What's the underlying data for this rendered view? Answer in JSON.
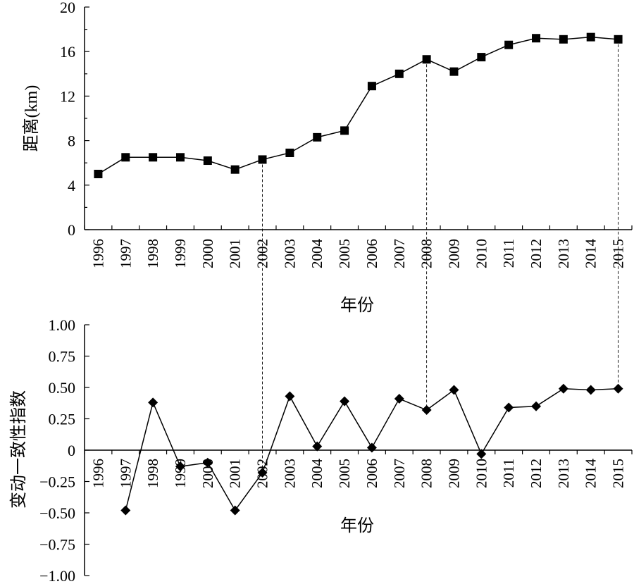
{
  "chart_data": [
    {
      "type": "line",
      "marker": "square",
      "x": [
        "1996",
        "1997",
        "1998",
        "1999",
        "2000",
        "2001",
        "2002",
        "2003",
        "2004",
        "2005",
        "2006",
        "2007",
        "2008",
        "2009",
        "2010",
        "2011",
        "2012",
        "2013",
        "2014",
        "2015"
      ],
      "values": [
        5.0,
        6.5,
        6.5,
        6.5,
        6.2,
        5.4,
        6.3,
        6.9,
        8.3,
        8.9,
        12.9,
        14.0,
        15.3,
        14.2,
        15.5,
        16.6,
        17.2,
        17.1,
        17.3,
        17.1
      ],
      "xlabel": "年份",
      "ylabel": "距离(km)",
      "ylim": [
        0,
        20
      ],
      "yticks": [
        "0",
        "4",
        "8",
        "12",
        "16",
        "20"
      ],
      "grid": false
    },
    {
      "type": "line",
      "marker": "diamond",
      "x": [
        "1996",
        "1997",
        "1998",
        "1999",
        "2000",
        "2001",
        "2002",
        "2003",
        "2004",
        "2005",
        "2006",
        "2007",
        "2008",
        "2009",
        "2010",
        "2011",
        "2012",
        "2013",
        "2014",
        "2015"
      ],
      "values": [
        null,
        -0.48,
        0.38,
        -0.13,
        -0.1,
        -0.48,
        -0.18,
        0.43,
        0.03,
        0.39,
        0.02,
        0.41,
        0.32,
        0.48,
        -0.03,
        0.34,
        0.35,
        0.49,
        0.48,
        0.49
      ],
      "xlabel": "年份",
      "ylabel": "变动一致性指数",
      "ylim": [
        -1.0,
        1.0
      ],
      "yticks": [
        "1.00",
        "0.75",
        "0.50",
        "0.25",
        "0",
        "−0.25",
        "−0.50",
        "−0.75",
        "−1.00"
      ],
      "grid": false
    }
  ],
  "guide_years": [
    "2002",
    "2008",
    "2015"
  ]
}
